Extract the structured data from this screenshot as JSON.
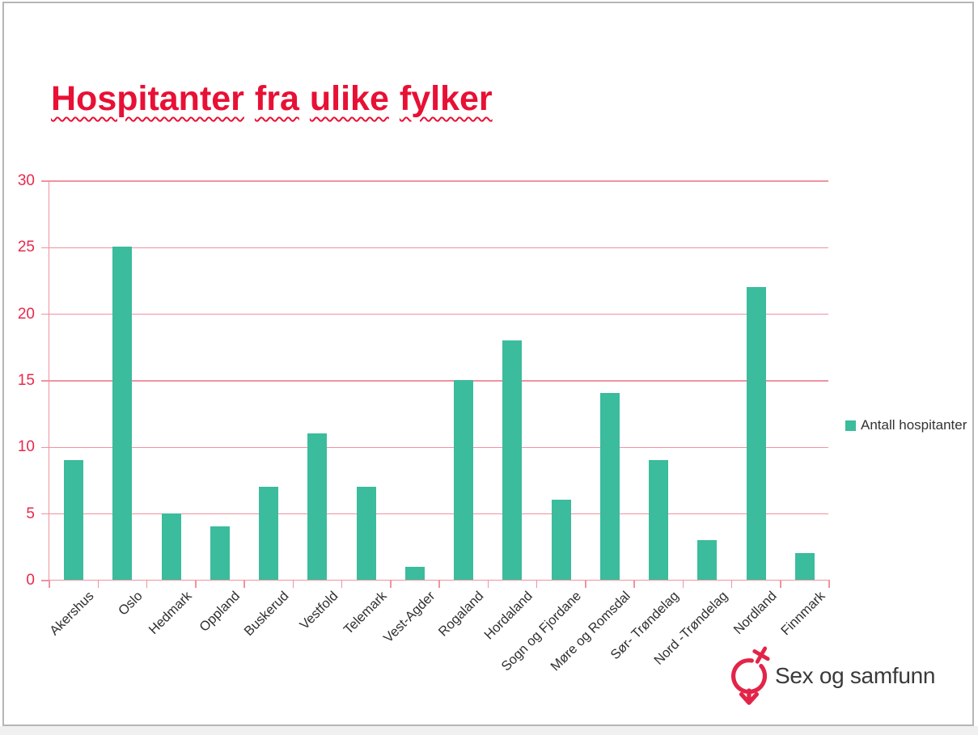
{
  "title": "Hospitanter fra ulike fylker",
  "chart_data": {
    "type": "bar",
    "title": "Hospitanter fra ulike fylker",
    "categories": [
      "Akershus",
      "Oslo",
      "Hedmark",
      "Oppland",
      "Buskerud",
      "Vestfold",
      "Telemark",
      "Vest-Agder",
      "Rogaland",
      "Hordaland",
      "Sogn og Fjordane",
      "Møre og Romsdal",
      "Sør- Trøndelag",
      "Nord -Trøndelag",
      "Nordland",
      "Finnmark"
    ],
    "values": [
      9,
      25,
      5,
      4,
      7,
      11,
      7,
      1,
      15,
      18,
      6,
      14,
      9,
      3,
      22,
      2
    ],
    "series_name": "Antall hospitanter",
    "xlabel": "",
    "ylabel": "",
    "ylim": [
      0,
      30
    ],
    "yticks": [
      0,
      5,
      10,
      15,
      20,
      25,
      30
    ],
    "grid": true,
    "legend_position": "right"
  },
  "logo": {
    "text": "Sex og samfunn"
  },
  "colors": {
    "bar": "#3BBC9C",
    "axis": "#EF93A0",
    "tick_label": "#E8294B",
    "title": "#E81035",
    "category_label": "#303030",
    "logo_red": "#E32448",
    "logo_text": "#3A3A3A"
  }
}
